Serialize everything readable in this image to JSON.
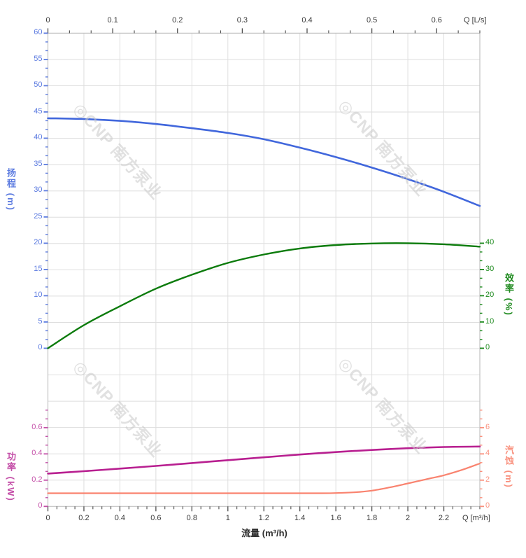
{
  "watermark": {
    "logo_glyph": "◎",
    "text": "CNP 南方泵业"
  },
  "colors": {
    "background": "#FFFFFF",
    "grid": "#DEDEDE",
    "plot_border": "#C2C2C2",
    "axis_tick_dark": "#4D4D4D",
    "axis_text_dark": "#3A3A3A",
    "watermark": "#C9C9C9"
  },
  "axes": {
    "x_top": {
      "unit_label": "Q [L/s]",
      "tick_labels": [
        "0",
        "0.1",
        "0.2",
        "0.3",
        "0.4",
        "0.5",
        "0.6"
      ]
    },
    "x_bottom": {
      "title": "流量 (m³/h)",
      "unit_label": "Q [m³/h]",
      "tick_labels": [
        "0",
        "0.2",
        "0.4",
        "0.6",
        "0.8",
        "1",
        "1.2",
        "1.4",
        "1.6",
        "1.8",
        "2",
        "2.2"
      ]
    },
    "head": {
      "title": "扬程 (m)",
      "label_color": "#5C7BE0",
      "tick_labels": [
        "60",
        "55",
        "50",
        "45",
        "40",
        "35",
        "30",
        "25",
        "20",
        "15",
        "10",
        "5",
        "0"
      ]
    },
    "eff": {
      "title": "效率 (%)",
      "label_color": "#1E8A1E",
      "tick_labels": [
        "40",
        "30",
        "20",
        "10",
        "0"
      ]
    },
    "power": {
      "title": "功率 (kW)",
      "label_color": "#C44FA8",
      "tick_labels": [
        "0.6",
        "0.4",
        "0.2",
        "0"
      ]
    },
    "npsh": {
      "title": "汽蚀 (m)",
      "label_color": "#F9917E",
      "tick_labels": [
        "6",
        "4",
        "2",
        "0"
      ]
    }
  },
  "chart_data": {
    "type": "line",
    "title": "",
    "grid": true,
    "x_axis": {
      "label": "流量 (m³/h)",
      "range": [
        0,
        2.4
      ],
      "secondary_label": "Q [L/s]",
      "secondary_range": [
        0,
        0.667
      ],
      "note": "1 L/s = 3.6 m³/h"
    },
    "y_axes": {
      "head": {
        "label": "扬程 (m)",
        "range": [
          0,
          60
        ],
        "side": "left"
      },
      "eff": {
        "label": "效率 (%)",
        "range": [
          0,
          40
        ],
        "side": "right"
      },
      "power": {
        "label": "功率 (kW)",
        "range": [
          0,
          0.6
        ],
        "side": "left"
      },
      "npsh": {
        "label": "汽蚀 (m)",
        "range": [
          0,
          6
        ],
        "side": "right"
      }
    },
    "series": [
      {
        "id": "head",
        "name": "扬程",
        "axis": "head",
        "color": "#4167DC",
        "width": 2.6,
        "q": [
          0,
          0.2,
          0.4,
          0.6,
          0.8,
          1.0,
          1.2,
          1.4,
          1.6,
          1.8,
          2.0,
          2.2,
          2.4
        ],
        "values": [
          43.8,
          43.65,
          43.3,
          42.7,
          41.9,
          41.0,
          39.8,
          38.2,
          36.4,
          34.4,
          32.2,
          29.8,
          27.1
        ]
      },
      {
        "id": "efficiency",
        "name": "效率",
        "axis": "eff",
        "color": "#0B7B0B",
        "width": 2.4,
        "q": [
          0,
          0.2,
          0.4,
          0.6,
          0.8,
          1.0,
          1.2,
          1.4,
          1.6,
          1.8,
          2.0,
          2.2,
          2.4
        ],
        "values": [
          0,
          8.8,
          16.0,
          22.7,
          28.0,
          32.5,
          35.7,
          38.0,
          39.3,
          39.9,
          40.0,
          39.6,
          38.7
        ]
      },
      {
        "id": "power",
        "name": "功率",
        "axis": "power",
        "color": "#B81F90",
        "width": 2.6,
        "q": [
          0,
          0.2,
          0.4,
          0.6,
          0.8,
          1.0,
          1.2,
          1.4,
          1.6,
          1.8,
          2.0,
          2.2,
          2.4
        ],
        "values": [
          0.25,
          0.268,
          0.288,
          0.308,
          0.33,
          0.352,
          0.374,
          0.395,
          0.414,
          0.43,
          0.443,
          0.452,
          0.456
        ]
      },
      {
        "id": "npsh",
        "name": "汽蚀",
        "axis": "npsh",
        "color": "#F9836F",
        "width": 2.2,
        "q": [
          0,
          0.4,
          0.8,
          1.2,
          1.5,
          1.6,
          1.7,
          1.8,
          1.9,
          2.0,
          2.1,
          2.2,
          2.3,
          2.4
        ],
        "values": [
          1.0,
          1.0,
          1.0,
          1.0,
          1.0,
          1.02,
          1.07,
          1.2,
          1.45,
          1.75,
          2.06,
          2.37,
          2.78,
          3.27
        ]
      }
    ]
  }
}
